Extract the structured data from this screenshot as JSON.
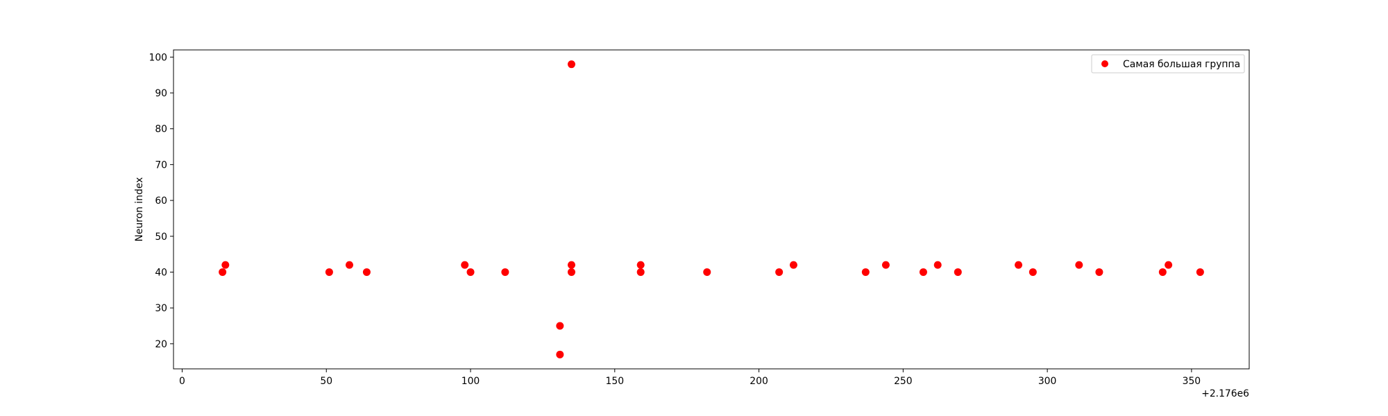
{
  "chart_data": {
    "type": "scatter",
    "xlabel": "",
    "ylabel": "Neuron index",
    "x_offset_label": "+2.176e6",
    "xlim": [
      -3,
      370
    ],
    "ylim": [
      13,
      102
    ],
    "xticks": [
      0,
      50,
      100,
      150,
      200,
      250,
      300,
      350
    ],
    "yticks": [
      20,
      30,
      40,
      50,
      60,
      70,
      80,
      90,
      100
    ],
    "grid": false,
    "legend": {
      "position": "top-right"
    },
    "colors": {
      "points": "#ff0000",
      "axes": "#000000",
      "background": "#ffffff"
    },
    "series": [
      {
        "name": "Самая большая группа",
        "points": [
          [
            14,
            40
          ],
          [
            15,
            42
          ],
          [
            51,
            40
          ],
          [
            58,
            42
          ],
          [
            64,
            40
          ],
          [
            98,
            42
          ],
          [
            100,
            40
          ],
          [
            112,
            40
          ],
          [
            131,
            25
          ],
          [
            131,
            17
          ],
          [
            135,
            98
          ],
          [
            135,
            42
          ],
          [
            135,
            40
          ],
          [
            159,
            42
          ],
          [
            159,
            40
          ],
          [
            182,
            40
          ],
          [
            207,
            40
          ],
          [
            212,
            42
          ],
          [
            237,
            40
          ],
          [
            244,
            42
          ],
          [
            257,
            40
          ],
          [
            262,
            42
          ],
          [
            269,
            40
          ],
          [
            290,
            42
          ],
          [
            295,
            40
          ],
          [
            311,
            42
          ],
          [
            318,
            40
          ],
          [
            340,
            40
          ],
          [
            342,
            42
          ],
          [
            353,
            40
          ]
        ]
      }
    ]
  }
}
